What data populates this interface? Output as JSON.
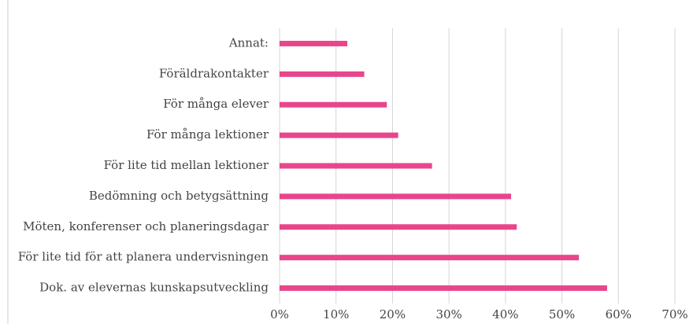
{
  "chart_data": {
    "type": "hbar",
    "categories": [
      "Annat:",
      "Föräldrakontakter",
      "För många elever",
      "För många lektioner",
      "För lite tid mellan lektioner",
      "Bedömning och betygsättning",
      "Möten, konferenser och planeringsdagar",
      "För lite tid för att planera undervisningen",
      "Dok. av elevernas kunskapsutveckling"
    ],
    "values": [
      12,
      15,
      19,
      21,
      27,
      41,
      42,
      53,
      58
    ],
    "color": "#e8468a",
    "xlim": [
      0,
      70
    ],
    "xticks": [
      {
        "value": 0,
        "label": "0%"
      },
      {
        "value": 10,
        "label": "10%"
      },
      {
        "value": 20,
        "label": "20%"
      },
      {
        "value": 30,
        "label": "30%"
      },
      {
        "value": 40,
        "label": "40%"
      },
      {
        "value": 50,
        "label": "50%"
      },
      {
        "value": 60,
        "label": "60%"
      },
      {
        "value": 70,
        "label": "70%"
      }
    ],
    "grid": true
  }
}
